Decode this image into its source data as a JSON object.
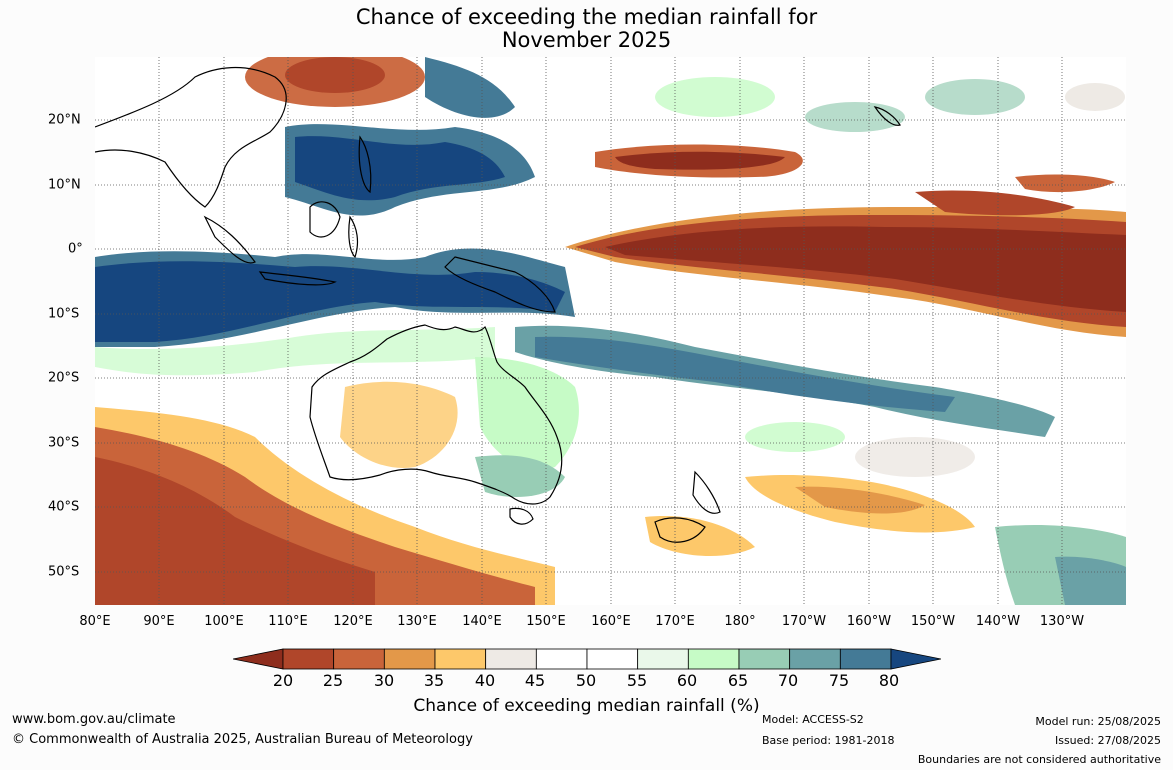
{
  "title": {
    "line1": "Chance of exceeding the median rainfall for",
    "line2": "November 2025"
  },
  "axes": {
    "lat_labels": [
      "20°N",
      "10°N",
      "0°",
      "10°S",
      "20°S",
      "30°S",
      "40°S",
      "50°S"
    ],
    "lon_labels": [
      "80°E",
      "90°E",
      "100°E",
      "110°E",
      "120°E",
      "130°E",
      "140°E",
      "150°E",
      "160°E",
      "170°E",
      "180°",
      "170°W",
      "160°W",
      "150°W",
      "140°W",
      "130°W"
    ]
  },
  "colorbar": {
    "ticks": [
      "20",
      "25",
      "30",
      "35",
      "40",
      "45",
      "50",
      "55",
      "60",
      "65",
      "70",
      "75",
      "80"
    ],
    "colors": [
      "#8e2d1d",
      "#b0462a",
      "#c9643a",
      "#e39849",
      "#fdc86a",
      "#eeeae5",
      "#ffffff",
      "#ffffff",
      "#eaf8ea",
      "#c6fbc6",
      "#98cdb5",
      "#6aa1a6",
      "#447a96",
      "#16467f"
    ],
    "label": "Chance of exceeding median rainfall (%)"
  },
  "map_colors": {
    "ocean_background": "#ffffff",
    "coastline": "#000000"
  },
  "footer": {
    "website": "www.bom.gov.au/climate",
    "copyright": "© Commonwealth of Australia 2025, Australian Bureau of Meteorology",
    "model": "Model: ACCESS-S2",
    "base_period": "Base period: 1981-2018",
    "model_run": "Model run: 25/08/2025",
    "issued": "Issued: 27/08/2025",
    "disclaimer": "Boundaries are not considered authoritative"
  }
}
